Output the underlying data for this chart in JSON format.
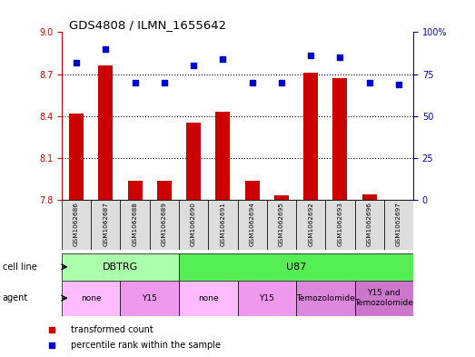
{
  "title": "GDS4808 / ILMN_1655642",
  "samples": [
    "GSM1062686",
    "GSM1062687",
    "GSM1062688",
    "GSM1062689",
    "GSM1062690",
    "GSM1062691",
    "GSM1062694",
    "GSM1062695",
    "GSM1062692",
    "GSM1062693",
    "GSM1062696",
    "GSM1062697"
  ],
  "transformed_counts": [
    8.42,
    8.76,
    7.94,
    7.94,
    8.35,
    8.43,
    7.94,
    7.83,
    8.71,
    8.67,
    7.84,
    7.8
  ],
  "percentile_ranks": [
    82,
    90,
    70,
    70,
    80,
    84,
    70,
    70,
    86,
    85,
    70,
    69
  ],
  "ylim_left": [
    7.8,
    9.0
  ],
  "ylim_right": [
    0,
    100
  ],
  "yticks_left": [
    7.8,
    8.1,
    8.4,
    8.7,
    9.0
  ],
  "yticks_right": [
    0,
    25,
    50,
    75,
    100
  ],
  "bar_color": "#cc0000",
  "dot_color": "#0000cc",
  "cell_line_row": {
    "label": "cell line",
    "groups": [
      {
        "text": "DBTRG",
        "start": 0,
        "end": 3,
        "color": "#aaffaa"
      },
      {
        "text": "U87",
        "start": 4,
        "end": 11,
        "color": "#55ee55"
      }
    ]
  },
  "agent_row": {
    "label": "agent",
    "groups": [
      {
        "text": "none",
        "start": 0,
        "end": 1,
        "color": "#ffbbff"
      },
      {
        "text": "Y15",
        "start": 2,
        "end": 3,
        "color": "#ee99ee"
      },
      {
        "text": "none",
        "start": 4,
        "end": 5,
        "color": "#ffbbff"
      },
      {
        "text": "Y15",
        "start": 6,
        "end": 7,
        "color": "#ee99ee"
      },
      {
        "text": "Temozolomide",
        "start": 8,
        "end": 9,
        "color": "#dd88dd"
      },
      {
        "text": "Y15 and\nTemozolomide",
        "start": 10,
        "end": 11,
        "color": "#cc77cc"
      }
    ]
  },
  "legend_items": [
    {
      "label": "transformed count",
      "color": "#cc0000",
      "marker": "s"
    },
    {
      "label": "percentile rank within the sample",
      "color": "#0000cc",
      "marker": "s"
    }
  ],
  "background_color": "#ffffff",
  "tick_color_left": "#cc0000",
  "tick_color_right": "#0000cc",
  "sample_bg_color": "#dddddd"
}
